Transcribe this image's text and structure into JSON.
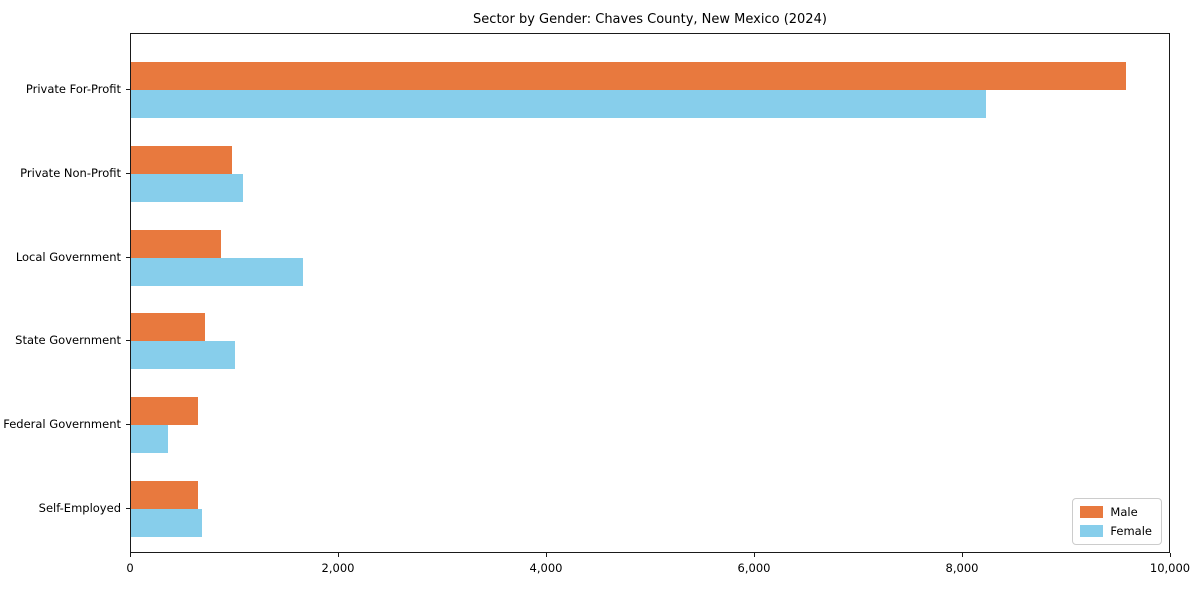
{
  "chart_data": {
    "type": "bar",
    "orientation": "horizontal",
    "title": "Sector by Gender: Chaves County, New Mexico (2024)",
    "categories": [
      "Private For-Profit",
      "Private Non-Profit",
      "Local Government",
      "State Government",
      "Federal Government",
      "Self-Employed"
    ],
    "series": [
      {
        "name": "Male",
        "color": "#e8793e",
        "values": [
          9565,
          970,
          865,
          710,
          640,
          640
        ]
      },
      {
        "name": "Female",
        "color": "#87ceeb",
        "values": [
          8220,
          1075,
          1650,
          1000,
          355,
          680
        ]
      }
    ],
    "xlabel": "",
    "ylabel": "",
    "xlim": [
      0,
      10000
    ],
    "xticks": [
      {
        "value": 0,
        "label": "0"
      },
      {
        "value": 2000,
        "label": "2,000"
      },
      {
        "value": 4000,
        "label": "4,000"
      },
      {
        "value": 6000,
        "label": "6,000"
      },
      {
        "value": 8000,
        "label": "8,000"
      },
      {
        "value": 10000,
        "label": "10,000"
      }
    ],
    "grid": false,
    "legend_position": "lower right"
  }
}
